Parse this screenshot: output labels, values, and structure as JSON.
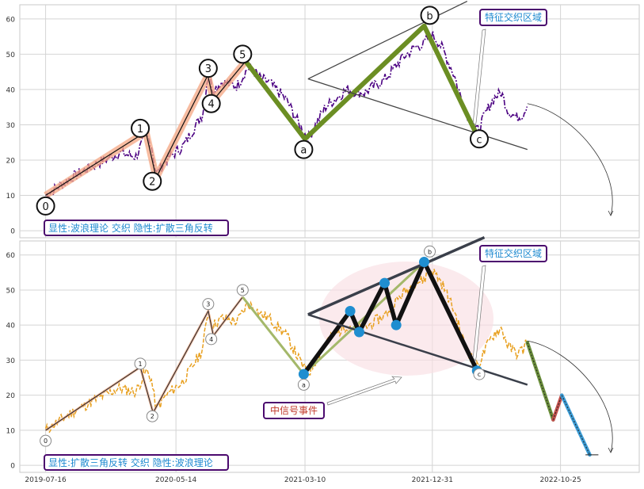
{
  "chart_data": [
    {
      "type": "line",
      "panel": "top",
      "title": "",
      "xlabel": "",
      "ylabel": "",
      "ylim": [
        -2,
        64
      ],
      "yticks": [
        0,
        10,
        20,
        30,
        40,
        50,
        60
      ],
      "xticks": [
        "2019-07-16",
        "2020-05-14",
        "2021-03-10",
        "2021-12-31",
        "2022-10-25"
      ],
      "xtick_values": [
        0,
        303,
        603,
        899,
        1197
      ],
      "grid": true,
      "price_color": "#4b0082",
      "price_profile": [
        [
          0,
          10
        ],
        [
          60,
          15
        ],
        [
          120,
          19
        ],
        [
          170,
          22
        ],
        [
          210,
          21
        ],
        [
          233,
          27
        ],
        [
          245,
          25
        ],
        [
          257,
          16
        ],
        [
          280,
          20
        ],
        [
          320,
          24
        ],
        [
          365,
          33
        ],
        [
          377,
          44
        ],
        [
          390,
          40
        ],
        [
          410,
          42
        ],
        [
          445,
          41
        ],
        [
          470,
          46
        ],
        [
          485,
          45
        ],
        [
          500,
          43
        ],
        [
          520,
          42
        ],
        [
          560,
          37
        ],
        [
          590,
          30
        ],
        [
          610,
          26
        ],
        [
          650,
          35
        ],
        [
          700,
          40
        ],
        [
          740,
          39
        ],
        [
          790,
          43
        ],
        [
          830,
          49
        ],
        [
          860,
          52
        ],
        [
          880,
          53
        ],
        [
          895,
          56
        ],
        [
          910,
          54
        ],
        [
          925,
          51
        ],
        [
          950,
          44
        ],
        [
          975,
          34
        ],
        [
          1003,
          28
        ],
        [
          1030,
          35
        ],
        [
          1045,
          38
        ],
        [
          1060,
          39
        ],
        [
          1075,
          34
        ],
        [
          1095,
          32
        ],
        [
          1110,
          33
        ],
        [
          1120,
          36
        ]
      ],
      "wave_0_5": [
        [
          0,
          10
        ],
        [
          233,
          28
        ],
        [
          257,
          15
        ],
        [
          377,
          44
        ],
        [
          390,
          37
        ],
        [
          465,
          48
        ]
      ],
      "wave_abc": [
        [
          465,
          48
        ],
        [
          603,
          26
        ],
        [
          880,
          58
        ],
        [
          1003,
          27
        ]
      ],
      "trend_upper": [
        [
          610,
          43
        ],
        [
          980,
          65
        ]
      ],
      "trend_lower": [
        [
          610,
          43
        ],
        [
          1120,
          23
        ]
      ],
      "wave_labels": [
        {
          "text": "0",
          "x": 0,
          "y": 7
        },
        {
          "text": "1",
          "x": 220,
          "y": 29
        },
        {
          "text": "2",
          "x": 248,
          "y": 14
        },
        {
          "text": "3",
          "x": 378,
          "y": 46
        },
        {
          "text": "4",
          "x": 385,
          "y": 36
        },
        {
          "text": "5",
          "x": 458,
          "y": 50
        },
        {
          "text": "a",
          "x": 600,
          "y": 23
        },
        {
          "text": "b",
          "x": 893,
          "y": 61
        },
        {
          "text": "c",
          "x": 1008,
          "y": 26
        }
      ],
      "annotation_zone": "特征交织区域",
      "caption": "显性:波浪理论 交织 隐性:扩散三角反转"
    },
    {
      "type": "line",
      "panel": "bottom",
      "title": "",
      "xlabel": "",
      "ylabel": "",
      "ylim": [
        -2,
        64
      ],
      "yticks": [
        0,
        10,
        20,
        30,
        40,
        50,
        60
      ],
      "xticks": [
        "2019-07-16",
        "2020-05-14",
        "2021-03-10",
        "2021-12-31",
        "2022-10-25"
      ],
      "xtick_values": [
        0,
        303,
        603,
        899,
        1197
      ],
      "grid": true,
      "price_color": "#e8a020",
      "pivots": [
        [
          600,
          26
        ],
        [
          708,
          44
        ],
        [
          729,
          38
        ],
        [
          788,
          52
        ],
        [
          815,
          40
        ],
        [
          880,
          58
        ],
        [
          1003,
          27
        ]
      ],
      "wave_0_5": [
        [
          0,
          10
        ],
        [
          220,
          28
        ],
        [
          250,
          15
        ],
        [
          378,
          44
        ],
        [
          390,
          37
        ],
        [
          458,
          48
        ]
      ],
      "wave_abc": [
        [
          458,
          48
        ],
        [
          600,
          26
        ],
        [
          880,
          58
        ],
        [
          1003,
          27
        ]
      ],
      "trend_upper": [
        [
          610,
          43
        ],
        [
          1020,
          65
        ]
      ],
      "trend_lower": [
        [
          610,
          43
        ],
        [
          1120,
          23
        ]
      ],
      "projection": [
        [
          1120,
          35
        ],
        [
          1180,
          13
        ],
        [
          1200,
          20
        ],
        [
          1265,
          3
        ]
      ],
      "wave_labels": [
        {
          "text": "0",
          "x": 0,
          "y": 7
        },
        {
          "text": "1",
          "x": 220,
          "y": 29
        },
        {
          "text": "2",
          "x": 248,
          "y": 14
        },
        {
          "text": "3",
          "x": 378,
          "y": 46
        },
        {
          "text": "4",
          "x": 385,
          "y": 36
        },
        {
          "text": "5",
          "x": 458,
          "y": 50
        },
        {
          "text": "a",
          "x": 600,
          "y": 23
        },
        {
          "text": "b",
          "x": 893,
          "y": 61
        },
        {
          "text": "c",
          "x": 1008,
          "y": 26
        }
      ],
      "annotation_zone": "特征交织区域",
      "annotation_signal": "中信号事件",
      "caption": "显性:扩散三角反转 交织 隐性:波浪理论"
    }
  ]
}
